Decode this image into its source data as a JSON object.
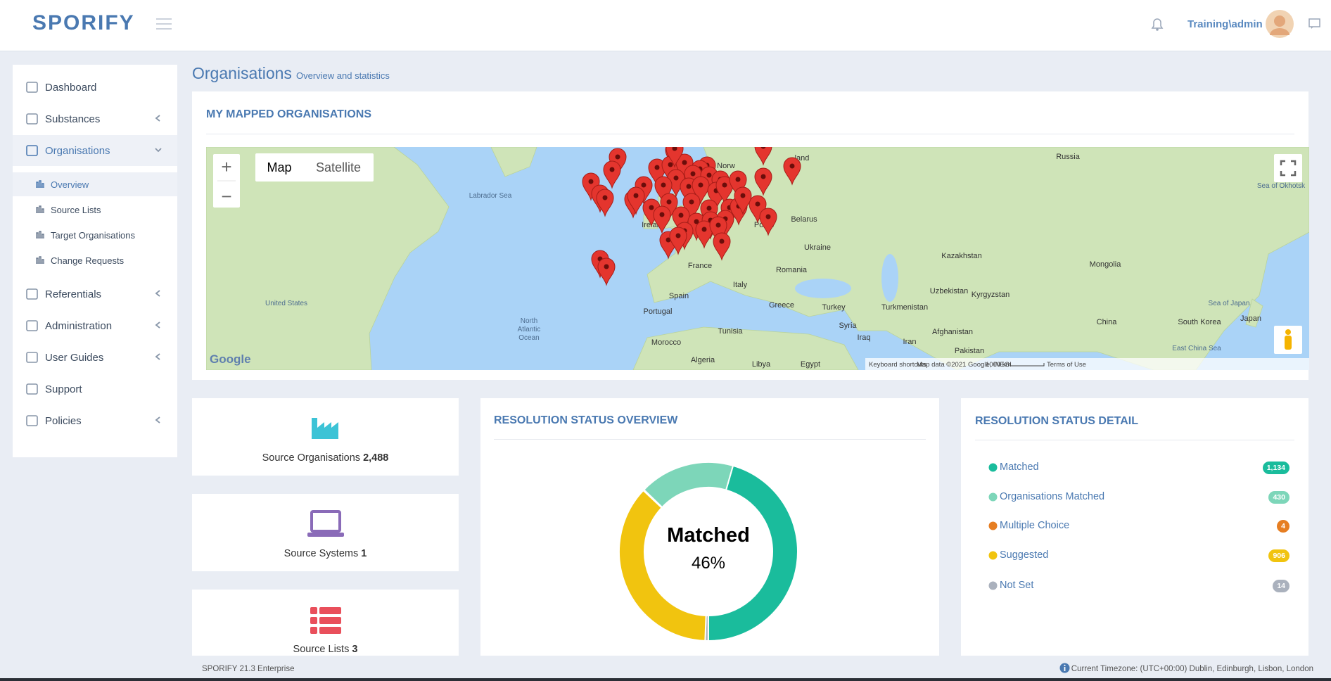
{
  "header": {
    "logo": "SPORIFY",
    "user": "Training\\admin"
  },
  "sidebar": {
    "items": [
      "Dashboard",
      "Substances",
      "Organisations",
      "Referentials",
      "Administration",
      "User Guides",
      "Support",
      "Policies"
    ],
    "subitems": [
      "Overview",
      "Source Lists",
      "Target Organisations",
      "Change Requests"
    ]
  },
  "page": {
    "title": "Organisations",
    "subtitle": "Overview and statistics"
  },
  "map_panel": {
    "title": "MY MAPPED ORGANISATIONS",
    "buttons": [
      "Map",
      "Satellite"
    ],
    "zoom_in": "+",
    "zoom_out": "−",
    "labels": [
      "Labrador Sea",
      "North",
      "Atlantic",
      "Ocean",
      "United States",
      "Ireland",
      "France",
      "Spain",
      "Portugal",
      "Italy",
      "Greece",
      "Turkey",
      "Ukraine",
      "Romania",
      "Belarus",
      "Russia",
      "Kazakhstan",
      "Mongolia",
      "China",
      "Morocco",
      "Algeria",
      "Libya",
      "Egypt",
      "Iraq",
      "Iran",
      "Afghanistan",
      "Pakistan",
      "Turkmenistan",
      "Uzbekistan",
      "Kyrgyzstan",
      "Japan",
      "South Korea",
      "Syria",
      "Tunisia",
      "Sea of Japan",
      "East China Sea",
      "Norw",
      "Polan",
      "land",
      "Sea of Okhotsk"
    ],
    "google": "Google",
    "footer": [
      "Keyboard shortcuts",
      "Map data ©2021 Google, INEGI",
      "1000 km",
      "Terms of Use"
    ]
  },
  "cards": [
    {
      "label": "Source Organisations",
      "value": "2,488"
    },
    {
      "label": "Source Systems",
      "value": "1"
    },
    {
      "label": "Source Lists",
      "value": "3"
    }
  ],
  "overview": {
    "title": "RESOLUTION STATUS OVERVIEW",
    "center_label": "Matched",
    "center_value": "46%"
  },
  "detail": {
    "title": "RESOLUTION STATUS DETAIL",
    "items": [
      {
        "label": "Matched",
        "count": 1134,
        "count_label": "1,134",
        "color": "#1abc9c"
      },
      {
        "label": "Organisations Matched",
        "count": 430,
        "color": "#7dd6b9"
      },
      {
        "label": "Multiple Choice",
        "count": 4,
        "color": "#e67e22"
      },
      {
        "label": "Suggested",
        "count": 906,
        "color": "#f1c40f"
      },
      {
        "label": "Not Set",
        "count": 14,
        "color": "#aab1bd"
      }
    ]
  },
  "footer": {
    "version": "SPORIFY 21.3 Enterprise",
    "timezone": "Current Timezone: (UTC+00:00) Dublin, Edinburgh, Lisbon, London"
  }
}
